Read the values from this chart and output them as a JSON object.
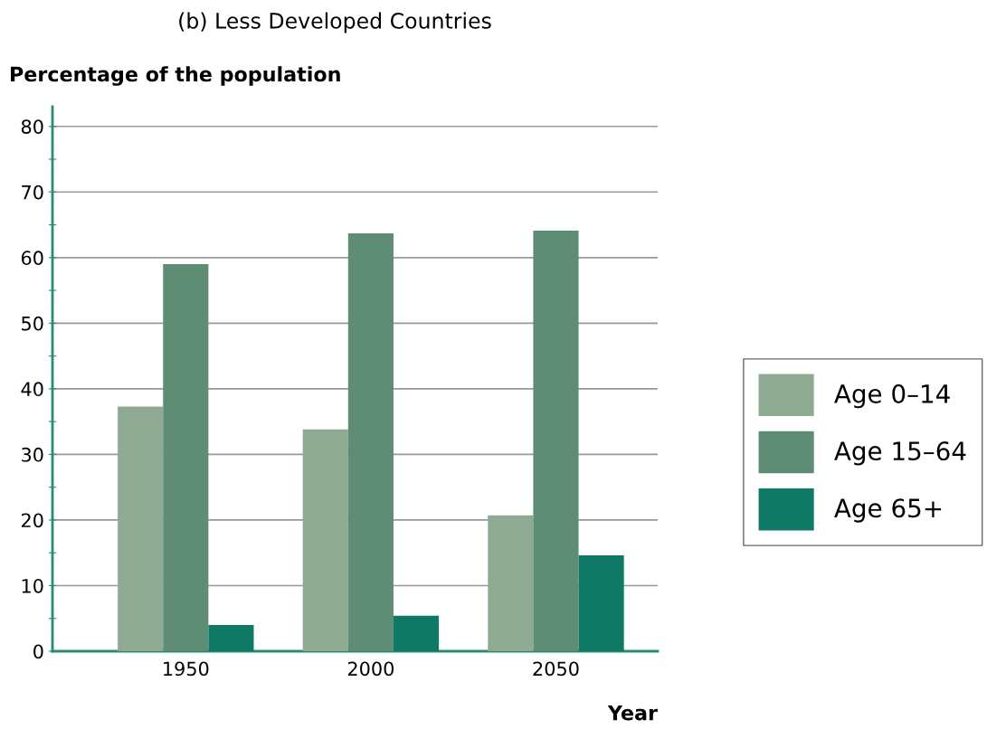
{
  "chart_data": {
    "type": "bar",
    "title": "(b) Less Developed Countries",
    "ylabel": "Percentage of the population",
    "xlabel": "Year",
    "categories": [
      "1950",
      "2000",
      "2050"
    ],
    "series": [
      {
        "name": "Age 0–14",
        "color": "#8faa92",
        "values": [
          37.3,
          33.8,
          20.7
        ]
      },
      {
        "name": "Age 15–64",
        "color": "#5f8c74",
        "values": [
          59,
          63.7,
          64.1
        ]
      },
      {
        "name": "Age 65+",
        "color": "#0e7a66",
        "values": [
          4,
          5.4,
          14.6
        ]
      }
    ],
    "ylim": [
      0,
      83
    ],
    "yticks": [
      0,
      {
        "value": 5,
        "label": null
      },
      10,
      {
        "value": 15,
        "label": null
      },
      20,
      {
        "value": 25,
        "label": null
      },
      30,
      {
        "value": 35,
        "label": null
      },
      40,
      {
        "value": 45,
        "label": null
      },
      50,
      {
        "value": 55,
        "label": null
      },
      60,
      {
        "value": 65,
        "label": null
      },
      70,
      {
        "value": 75,
        "label": null
      },
      80
    ],
    "grid": "y",
    "legend": "right"
  }
}
